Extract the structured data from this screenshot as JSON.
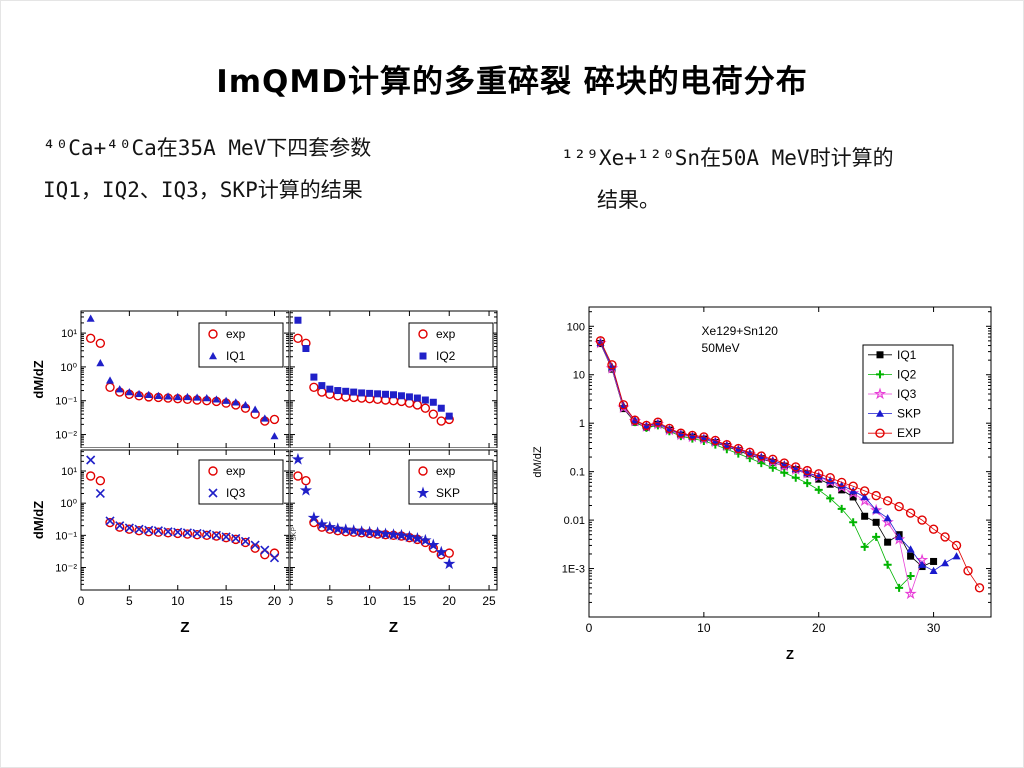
{
  "slide": {
    "title": "ImQMD计算的多重碎裂 碎块的电荷分布",
    "left_note": [
      "⁴⁰Ca+⁴⁰Ca在35A MeV下四套参数",
      "IQ1，IQ2、IQ3，SKP计算的结果"
    ],
    "right_note": [
      "¹²⁹Xe+¹²⁰Sn在50A MeV时计算的",
      "结果。"
    ]
  },
  "colors": {
    "exp_red": "#e10000",
    "model_blue": "#2020c8",
    "iq1_black": "#000000",
    "iq2_green": "#00b400",
    "iq3_magenta": "#e840d8",
    "skp_blue": "#1a1acd",
    "axis": "#000000"
  },
  "chart_data": [
    {
      "id": "ca-iq1",
      "type": "scatter",
      "xlabel": "Z",
      "ylabel": "dM/dZ",
      "xlim": [
        0,
        21.5
      ],
      "ylim": [
        0.004,
        45
      ],
      "log_y": true,
      "xticks": [
        0,
        5,
        10,
        15,
        20
      ],
      "yticks": [
        {
          "v": 10,
          "label": "10¹"
        },
        {
          "v": 1,
          "label": "10⁰"
        },
        {
          "v": 0.1,
          "label": "10⁻¹"
        },
        {
          "v": 0.01,
          "label": "10⁻²"
        }
      ],
      "legend_pos": "top-right",
      "series": [
        {
          "name": "exp",
          "marker": "circle-open",
          "color": "#e10000",
          "x0": 1,
          "y": [
            7,
            5,
            0.25,
            0.18,
            0.155,
            0.14,
            0.13,
            0.125,
            0.12,
            0.115,
            0.11,
            0.105,
            0.1,
            0.095,
            0.085,
            0.075,
            0.06,
            0.04,
            0.025,
            0.028
          ]
        },
        {
          "name": "IQ1",
          "marker": "triangle",
          "color": "#2020c8",
          "x0": 1,
          "y": [
            27,
            1.3,
            0.4,
            0.22,
            0.18,
            0.16,
            0.15,
            0.14,
            0.135,
            0.13,
            0.13,
            0.125,
            0.12,
            0.11,
            0.1,
            0.09,
            0.075,
            0.055,
            0.03,
            0.009
          ]
        }
      ]
    },
    {
      "id": "ca-iq2",
      "type": "scatter",
      "xlabel": "Z",
      "ylabel": "",
      "xlim": [
        0,
        26
      ],
      "ylim": [
        0.004,
        45
      ],
      "log_y": true,
      "xticks": [
        0,
        5,
        10,
        15,
        20,
        25
      ],
      "yticks": [
        {
          "v": 10,
          "label": "10¹"
        },
        {
          "v": 1,
          "label": "10⁰"
        },
        {
          "v": 0.1,
          "label": "10⁻¹"
        },
        {
          "v": 0.01,
          "label": "10⁻²"
        }
      ],
      "legend_pos": "top-right",
      "series": [
        {
          "name": "exp",
          "marker": "circle-open",
          "color": "#e10000",
          "x0": 1,
          "y": [
            7,
            5,
            0.25,
            0.18,
            0.155,
            0.14,
            0.13,
            0.125,
            0.12,
            0.115,
            0.11,
            0.105,
            0.1,
            0.095,
            0.085,
            0.075,
            0.06,
            0.04,
            0.025,
            0.028
          ]
        },
        {
          "name": "IQ2",
          "marker": "square",
          "color": "#2020c8",
          "x0": 1,
          "y": [
            24,
            3.5,
            0.5,
            0.28,
            0.22,
            0.2,
            0.19,
            0.18,
            0.17,
            0.165,
            0.16,
            0.155,
            0.15,
            0.14,
            0.13,
            0.12,
            0.105,
            0.09,
            0.06,
            0.035
          ]
        }
      ]
    },
    {
      "id": "ca-iq3",
      "type": "scatter",
      "xlabel": "Z",
      "ylabel": "dM/dZ",
      "xlim": [
        0,
        21.5
      ],
      "ylim": [
        0.002,
        45
      ],
      "log_y": true,
      "xticks": [
        0,
        5,
        10,
        15,
        20
      ],
      "yticks": [
        {
          "v": 10,
          "label": "10¹"
        },
        {
          "v": 1,
          "label": "10⁰"
        },
        {
          "v": 0.1,
          "label": "10⁻¹"
        },
        {
          "v": 0.01,
          "label": "10⁻²"
        }
      ],
      "legend_pos": "top-right",
      "series": [
        {
          "name": "exp",
          "marker": "circle-open",
          "color": "#e10000",
          "x0": 1,
          "y": [
            7,
            5,
            0.25,
            0.18,
            0.155,
            0.14,
            0.13,
            0.125,
            0.12,
            0.115,
            0.11,
            0.105,
            0.1,
            0.095,
            0.085,
            0.075,
            0.06,
            0.04,
            0.025,
            0.028
          ]
        },
        {
          "name": "IQ3",
          "marker": "x",
          "color": "#2020c8",
          "x0": 1,
          "y": [
            22,
            2.0,
            0.28,
            0.2,
            0.17,
            0.155,
            0.145,
            0.14,
            0.13,
            0.125,
            0.12,
            0.115,
            0.11,
            0.1,
            0.09,
            0.08,
            0.065,
            0.05,
            0.035,
            0.02
          ]
        }
      ]
    },
    {
      "id": "ca-skp",
      "type": "scatter",
      "xlabel": "Z",
      "ylabel": "",
      "side_label": "SKP",
      "xlim": [
        0,
        26
      ],
      "ylim": [
        0.002,
        45
      ],
      "log_y": true,
      "xticks": [
        0,
        5,
        10,
        15,
        20,
        25
      ],
      "yticks": [
        {
          "v": 10,
          "label": "10¹"
        },
        {
          "v": 1,
          "label": "10⁰"
        },
        {
          "v": 0.1,
          "label": "10⁻¹"
        },
        {
          "v": 0.01,
          "label": "10⁻²"
        }
      ],
      "legend_pos": "top-right",
      "series": [
        {
          "name": "exp",
          "marker": "circle-open",
          "color": "#e10000",
          "x0": 1,
          "y": [
            7,
            5,
            0.25,
            0.18,
            0.155,
            0.14,
            0.13,
            0.125,
            0.12,
            0.115,
            0.11,
            0.105,
            0.1,
            0.095,
            0.085,
            0.075,
            0.06,
            0.04,
            0.025,
            0.028
          ]
        },
        {
          "name": "SKP",
          "marker": "star",
          "color": "#2020c8",
          "x0": 1,
          "y": [
            23,
            2.5,
            0.35,
            0.22,
            0.18,
            0.16,
            0.15,
            0.14,
            0.13,
            0.125,
            0.12,
            0.11,
            0.105,
            0.1,
            0.09,
            0.08,
            0.07,
            0.05,
            0.03,
            0.013
          ]
        }
      ]
    },
    {
      "id": "xe-sn",
      "type": "scatter",
      "inner_title": [
        "Xe129+Sn120",
        "50MeV"
      ],
      "xlabel": "Z",
      "ylabel": "dM/dZ",
      "xlim": [
        0,
        35
      ],
      "ylim": [
        0.0001,
        250
      ],
      "log_y": true,
      "xticks": [
        0,
        10,
        20,
        30
      ],
      "yticks": [
        {
          "v": 100,
          "label": "100"
        },
        {
          "v": 10,
          "label": "10"
        },
        {
          "v": 1,
          "label": "1"
        },
        {
          "v": 0.1,
          "label": "0.1"
        },
        {
          "v": 0.01,
          "label": "0.01"
        },
        {
          "v": 0.001,
          "label": "1E-3"
        }
      ],
      "legend_pos": "top-right",
      "series": [
        {
          "name": "IQ1",
          "marker": "square",
          "color": "#000000",
          "line": true,
          "x0": 1,
          "y": [
            44,
            13,
            2.0,
            1.05,
            0.82,
            0.95,
            0.72,
            0.57,
            0.52,
            0.47,
            0.4,
            0.33,
            0.27,
            0.22,
            0.185,
            0.155,
            0.13,
            0.11,
            0.09,
            0.07,
            0.055,
            0.042,
            0.03,
            0.012,
            0.009,
            0.0035,
            0.005,
            0.0018,
            0.0011,
            0.0014
          ]
        },
        {
          "name": "IQ2",
          "marker": "plus",
          "color": "#00b400",
          "line": true,
          "x0": 1,
          "y": [
            47,
            14,
            2.2,
            1.05,
            0.8,
            0.9,
            0.68,
            0.54,
            0.48,
            0.43,
            0.36,
            0.29,
            0.235,
            0.19,
            0.15,
            0.12,
            0.095,
            0.075,
            0.058,
            0.042,
            0.028,
            0.017,
            0.009,
            0.0028,
            0.0045,
            0.0012,
            0.0004,
            0.0007
          ]
        },
        {
          "name": "IQ3",
          "marker": "star-open",
          "color": "#e840d8",
          "line": true,
          "x0": 1,
          "y": [
            45,
            13.5,
            2.1,
            1.1,
            0.85,
            0.95,
            0.72,
            0.57,
            0.52,
            0.47,
            0.41,
            0.34,
            0.28,
            0.23,
            0.19,
            0.16,
            0.13,
            0.11,
            0.092,
            0.078,
            0.062,
            0.048,
            0.036,
            0.025,
            0.016,
            0.009,
            0.004,
            0.0003,
            0.0015
          ]
        },
        {
          "name": "SKP",
          "marker": "triangle",
          "color": "#1a1acd",
          "line": true,
          "x0": 1,
          "y": [
            46,
            14.5,
            2.3,
            1.15,
            0.88,
            1.0,
            0.75,
            0.6,
            0.54,
            0.49,
            0.42,
            0.35,
            0.29,
            0.24,
            0.2,
            0.17,
            0.14,
            0.115,
            0.095,
            0.08,
            0.065,
            0.052,
            0.04,
            0.03,
            0.016,
            0.011,
            0.0045,
            0.0025,
            0.0012,
            0.0009,
            0.0013,
            0.0018
          ]
        },
        {
          "name": "EXP",
          "marker": "circle-open",
          "color": "#e10000",
          "line": true,
          "x0": 1,
          "y": [
            50,
            16,
            2.4,
            1.15,
            0.9,
            1.05,
            0.78,
            0.62,
            0.56,
            0.52,
            0.44,
            0.36,
            0.3,
            0.25,
            0.21,
            0.18,
            0.15,
            0.125,
            0.105,
            0.09,
            0.075,
            0.06,
            0.05,
            0.04,
            0.032,
            0.025,
            0.019,
            0.014,
            0.01,
            0.0065,
            0.0045,
            0.003,
            0.0009,
            0.0004
          ]
        }
      ]
    }
  ]
}
